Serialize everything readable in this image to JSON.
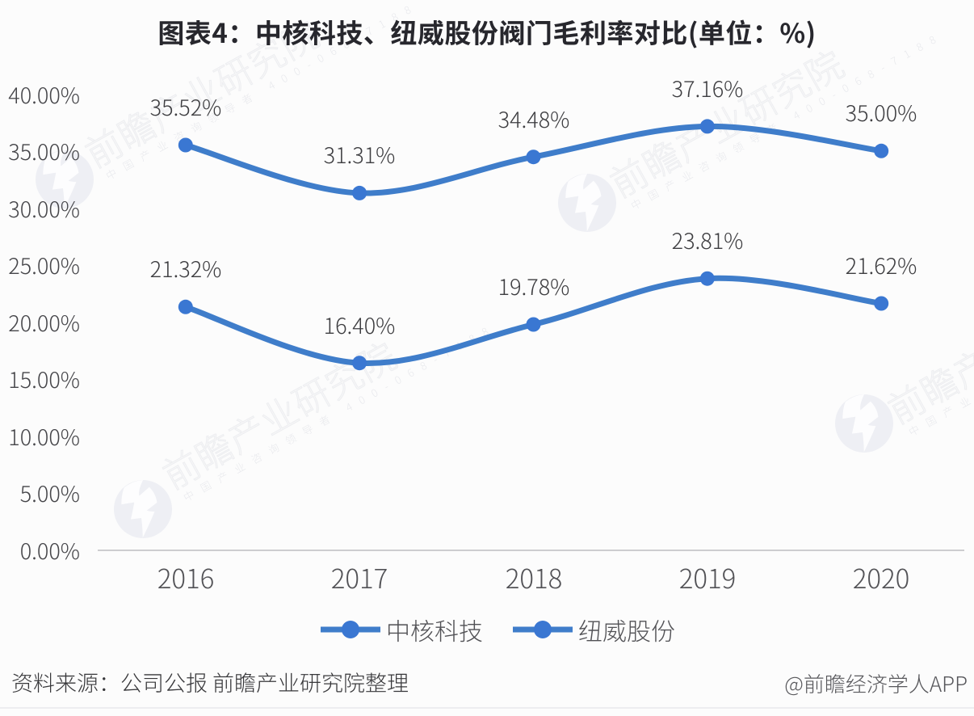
{
  "chart_data": {
    "type": "line",
    "title": "图表4：中核科技、纽威股份阀门毛利率对比(单位：%)",
    "categories": [
      "2016",
      "2017",
      "2018",
      "2019",
      "2020"
    ],
    "series": [
      {
        "name": "中核科技",
        "values": [
          21.32,
          16.4,
          19.78,
          23.81,
          21.62
        ],
        "labels": [
          "21.32%",
          "16.40%",
          "19.78%",
          "23.81%",
          "21.62%"
        ]
      },
      {
        "name": "纽威股份",
        "values": [
          35.52,
          31.31,
          34.48,
          37.16,
          35.0
        ],
        "labels": [
          "35.52%",
          "31.31%",
          "34.48%",
          "37.16%",
          "35.00%"
        ]
      }
    ],
    "ylabel": "",
    "xlabel": "",
    "ylim": [
      0,
      40
    ],
    "y_tick_step": 5,
    "y_ticks": [
      "0.00%",
      "5.00%",
      "10.00%",
      "15.00%",
      "20.00%",
      "25.00%",
      "30.00%",
      "35.00%",
      "40.00%"
    ],
    "grid": false,
    "legend_position": "bottom",
    "smooth_lines": true,
    "line_color": "#3f7dca",
    "marker_color": "#3a77d2",
    "axis_color": "#c9c9cc"
  },
  "footer": {
    "source": "资料来源：公司公报 前瞻产业研究院整理",
    "attribution": "@前瞻经济学人APP"
  },
  "watermark": {
    "line1": "前瞻产业研究院",
    "line2": "中国产业咨询领导者 400-068-7188",
    "logo": "qianzhan-circle-logo"
  }
}
